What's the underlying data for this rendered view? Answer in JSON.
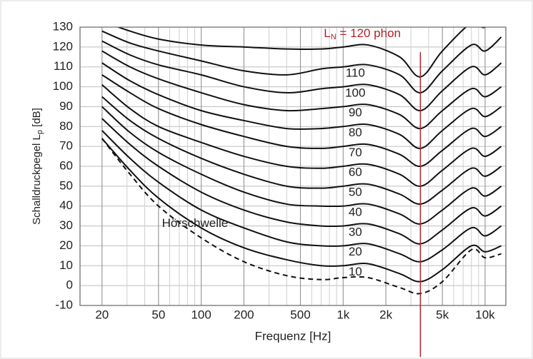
{
  "chart_data": {
    "type": "line",
    "x_label": "Frequenz [Hz]",
    "y_label": {
      "text": "Schalldruckpegel L",
      "sub": "p",
      "rest": " [dB]"
    },
    "x": [
      20,
      31.5,
      50,
      100,
      200,
      400,
      700,
      1000,
      1500,
      2500,
      3500,
      5000,
      8000,
      10000,
      13000
    ],
    "log_x": true,
    "xlim": [
      14,
      14000
    ],
    "xticks": [
      20,
      50,
      100,
      200,
      500,
      {
        "value": 1000,
        "label": "1k"
      },
      {
        "value": 2000,
        "label": "2k"
      },
      {
        "value": 5000,
        "label": "5k"
      },
      {
        "value": 10000,
        "label": "10k"
      }
    ],
    "minor_xticks": [
      30,
      40,
      60,
      70,
      80,
      90,
      300,
      400,
      600,
      700,
      800,
      900,
      3000,
      4000,
      6000,
      7000,
      8000,
      9000
    ],
    "ylim": [
      -10,
      130
    ],
    "yticks": [
      -10,
      0,
      10,
      20,
      30,
      40,
      50,
      60,
      70,
      80,
      90,
      100,
      110,
      120,
      130
    ],
    "grid": true,
    "label_color": "#b3202a",
    "series": [
      {
        "name": "10",
        "color": "#111111",
        "values": [
          74,
          58,
          44,
          29,
          19,
          13,
          10,
          10,
          11,
          6,
          2,
          8,
          20,
          17,
          20
        ]
      },
      {
        "name": "20",
        "color": "#111111",
        "values": [
          78,
          64,
          52,
          38,
          29,
          22,
          20,
          20,
          21,
          16,
          12,
          18,
          29,
          25,
          30
        ]
      },
      {
        "name": "30",
        "color": "#111111",
        "values": [
          84,
          71,
          60,
          47,
          38,
          32,
          30,
          30,
          31,
          26,
          21,
          28,
          39,
          35,
          40
        ]
      },
      {
        "name": "40",
        "color": "#111111",
        "values": [
          90,
          77,
          67,
          56,
          47,
          41,
          40,
          40,
          41,
          36,
          31,
          38,
          49,
          45,
          50
        ]
      },
      {
        "name": "50",
        "color": "#111111",
        "values": [
          95,
          83,
          74,
          64,
          56,
          50,
          49,
          50,
          51,
          46,
          41,
          48,
          59,
          55,
          60
        ]
      },
      {
        "name": "60",
        "color": "#111111",
        "values": [
          101,
          89,
          80,
          72,
          65,
          60,
          59,
          60,
          61,
          56,
          50,
          58,
          69,
          65,
          70
        ]
      },
      {
        "name": "70",
        "color": "#111111",
        "values": [
          106,
          97,
          89,
          81,
          75,
          70,
          69,
          70,
          71,
          66,
          60,
          68,
          79,
          75,
          80
        ]
      },
      {
        "name": "80",
        "color": "#111111",
        "values": [
          112,
          103,
          96,
          88,
          83,
          79,
          79,
          80,
          81,
          76,
          69,
          78,
          89,
          85,
          90
        ]
      },
      {
        "name": "90",
        "color": "#111111",
        "values": [
          118,
          110,
          104,
          97,
          91,
          88,
          89,
          90,
          91,
          86,
          79,
          88,
          99,
          95,
          100
        ]
      },
      {
        "name": "100",
        "color": "#111111",
        "values": [
          123,
          116,
          111,
          106,
          100,
          97,
          99,
          100,
          101,
          96,
          88,
          98,
          110,
          106,
          112
        ]
      },
      {
        "name": "110",
        "color": "#111111",
        "values": [
          128,
          122,
          118,
          113,
          108,
          106,
          109,
          110,
          111,
          106,
          97,
          108,
          121,
          118,
          125
        ]
      },
      {
        "color": "#111111",
        "label": {
          "text": "L",
          "sub": "N",
          "rest": " = 120 phon"
        },
        "values": [
          133,
          128,
          124,
          121,
          120,
          119,
          119,
          120,
          121,
          115,
          105,
          118,
          132,
          130,
          140
        ]
      },
      {
        "name": "Hörschwelle",
        "color": "#111111",
        "dashed": true,
        "label_color": "#1f7fcf",
        "values": [
          74,
          56,
          40,
          24,
          12,
          5,
          3,
          4,
          4,
          -1,
          -4,
          2,
          18,
          14,
          16
        ]
      }
    ],
    "vline": {
      "x": 3500,
      "color": "#b3202a"
    }
  }
}
